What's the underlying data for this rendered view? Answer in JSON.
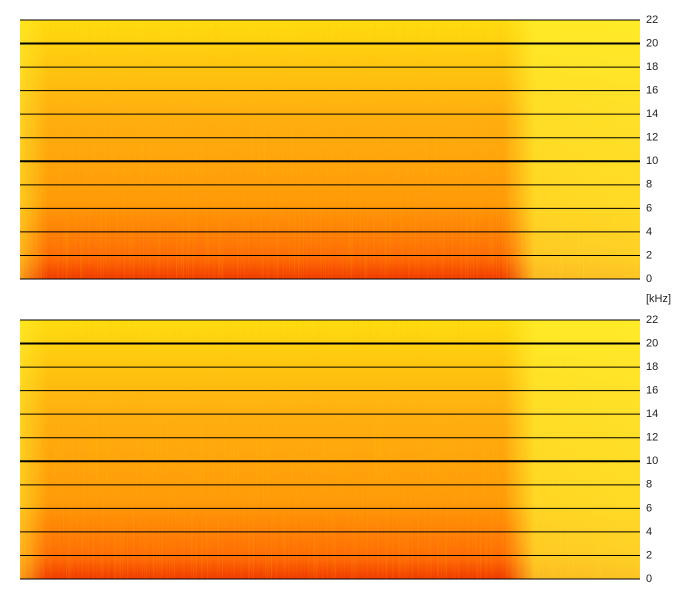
{
  "chart_data": [
    {
      "type": "spectrogram",
      "ylabel": "[kHz]",
      "ylim": [
        0,
        22
      ],
      "yticks": [
        0,
        2,
        4,
        6,
        8,
        10,
        12,
        14,
        16,
        18,
        20,
        22
      ]
    },
    {
      "type": "spectrogram",
      "ylim": [
        0,
        22
      ],
      "yticks": [
        0,
        2,
        4,
        6,
        8,
        10,
        12,
        14,
        16,
        18,
        20,
        22
      ]
    }
  ]
}
